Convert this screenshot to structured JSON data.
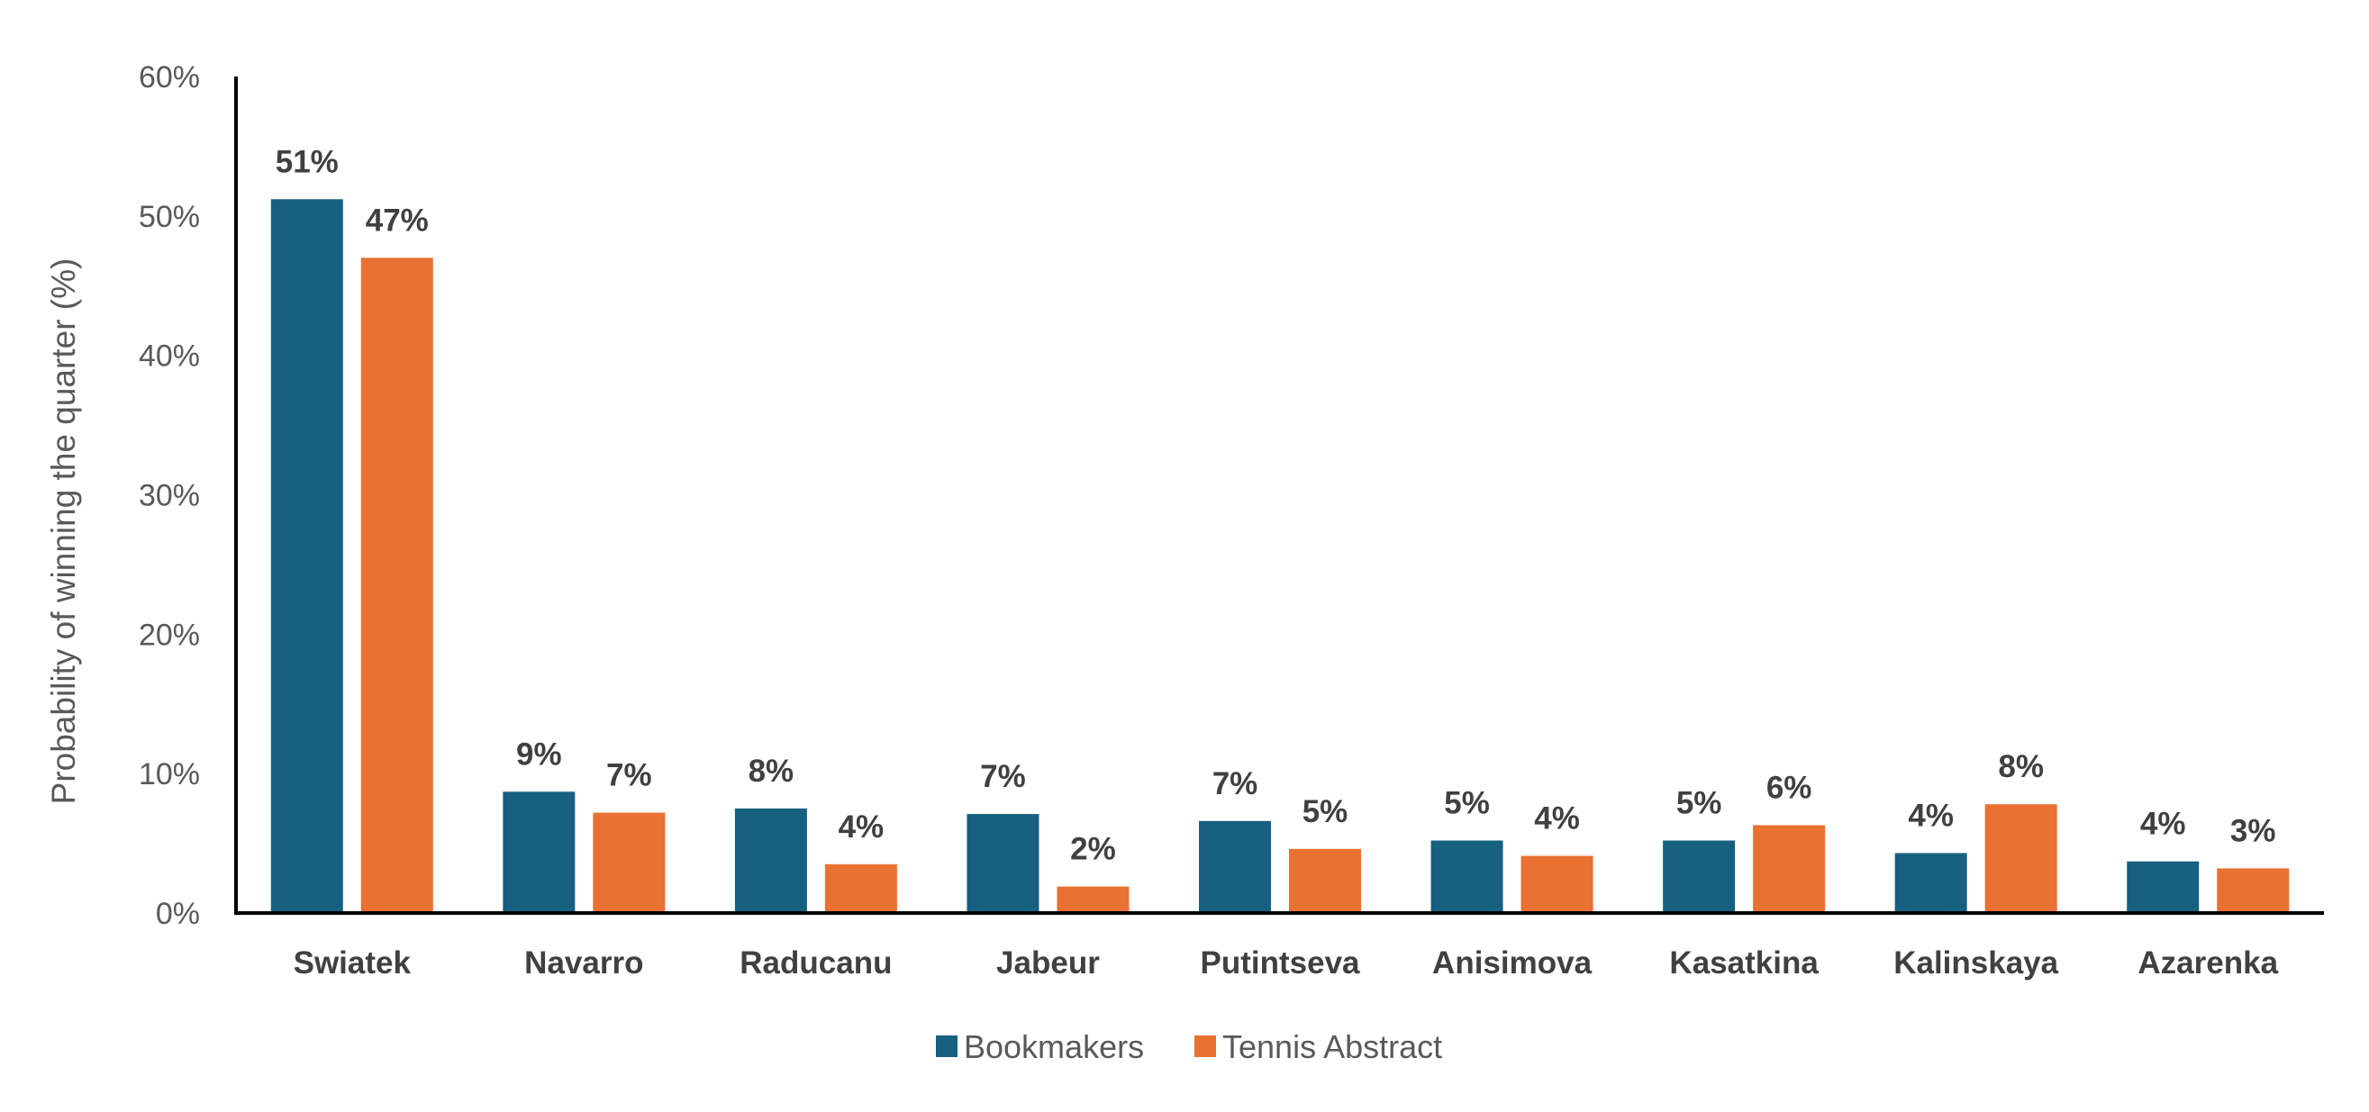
{
  "chart_data": {
    "type": "bar",
    "title": "",
    "xlabel": "",
    "ylabel": "Probability of winning the quarter (%)",
    "ylim": [
      0,
      60
    ],
    "yticks": [
      "0%",
      "10%",
      "20%",
      "30%",
      "40%",
      "50%",
      "60%"
    ],
    "yticks_values": [
      0,
      10,
      20,
      30,
      40,
      50,
      60
    ],
    "grid": false,
    "legend_position": "bottom",
    "categories": [
      "Swiatek",
      "Navarro",
      "Raducanu",
      "Jabeur",
      "Putintseva",
      "Anisimova",
      "Kasatkina",
      "Kalinskaya",
      "Azarenka"
    ],
    "series": [
      {
        "name": "Bookmakers",
        "color": "#17607F",
        "values": [
          51.2,
          8.7,
          7.5,
          7.1,
          6.6,
          5.2,
          5.2,
          4.3,
          3.7
        ],
        "labels": [
          "51%",
          "9%",
          "8%",
          "7%",
          "7%",
          "5%",
          "5%",
          "4%",
          "4%"
        ]
      },
      {
        "name": "Tennis Abstract",
        "color": "#E97132",
        "values": [
          47.0,
          7.2,
          3.5,
          1.9,
          4.6,
          4.1,
          6.3,
          7.8,
          3.2
        ],
        "labels": [
          "47%",
          "7%",
          "4%",
          "2%",
          "5%",
          "4%",
          "6%",
          "8%",
          "3%"
        ]
      }
    ]
  }
}
